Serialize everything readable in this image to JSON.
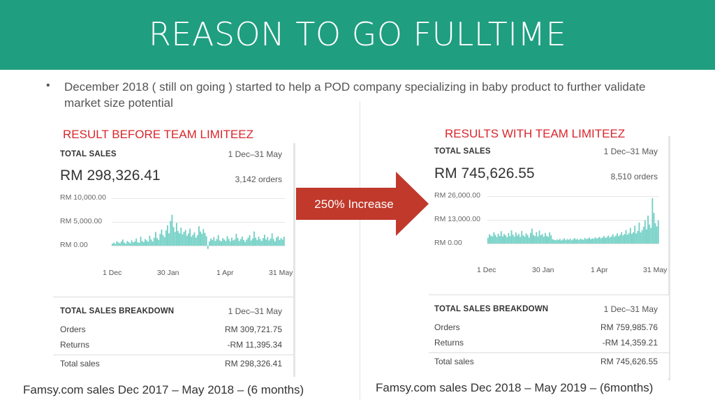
{
  "title": "REASON TO GO FULLTIME",
  "bullet": {
    "marker": "•",
    "text": "December 2018 ( still on going ) started to help a POD company specializing in baby product to further validate market size potential"
  },
  "left": {
    "label": "RESULT BEFORE TEAM LIMITEEZ",
    "total_sales": {
      "title": "TOTAL SALES",
      "date_range": "1 Dec–31 May",
      "amount": "RM 298,326.41",
      "orders": "3,142 orders"
    },
    "breakdown": {
      "title": "TOTAL SALES BREAKDOWN",
      "date_range": "1 Dec–31 May",
      "rows": [
        {
          "label": "Orders",
          "value": "RM 309,721.75"
        },
        {
          "label": "Returns",
          "value": "-RM 11,395.34"
        },
        {
          "label": "Total sales",
          "value": "RM 298,326.41"
        }
      ]
    },
    "caption": "Famsy.com sales Dec 2017 – May 2018 – (6 months)"
  },
  "right": {
    "label": "RESULTS WITH TEAM LIMITEEZ",
    "total_sales": {
      "title": "TOTAL SALES",
      "date_range": "1 Dec–31 May",
      "amount": "RM 745,626.55",
      "orders": "8,510 orders"
    },
    "breakdown": {
      "title": "TOTAL SALES BREAKDOWN",
      "date_range": "1 Dec–31 May",
      "rows": [
        {
          "label": "Orders",
          "value": "RM 759,985.76"
        },
        {
          "label": "Returns",
          "value": "-RM 14,359.21"
        },
        {
          "label": "Total sales",
          "value": "RM 745,626.55"
        }
      ]
    },
    "caption": "Famsy.com sales Dec 2018 – May 2019 – (6months)"
  },
  "arrow": {
    "label": "250% Increase",
    "color": "#c0392b"
  },
  "colors": {
    "header": "#1f9e80",
    "accent_red": "#d9262c",
    "series": "#6fcfc4"
  },
  "chart_data": [
    {
      "type": "bar",
      "ytick_labels": [
        "RM 10,000.00",
        "RM 5,000.00",
        "RM 0.00"
      ],
      "yticks": [
        10000,
        5000,
        0
      ],
      "ylim": [
        0,
        10000
      ],
      "xtick_labels": [
        "1 Dec",
        "30 Jan",
        "1 Apr",
        "31 May"
      ],
      "values": [
        420,
        610,
        380,
        900,
        700,
        520,
        880,
        1300,
        650,
        430,
        980,
        760,
        540,
        1120,
        690,
        880,
        1500,
        720,
        610,
        1900,
        980,
        760,
        1400,
        1100,
        840,
        2100,
        1300,
        900,
        1700,
        2900,
        1600,
        1200,
        2500,
        3400,
        2200,
        1800,
        3200,
        4300,
        2600,
        5200,
        6500,
        3900,
        2900,
        4800,
        3100,
        2600,
        3800,
        2400,
        2900,
        3300,
        2100,
        2600,
        3600,
        1900,
        2300,
        2800,
        1700,
        2200,
        4100,
        3000,
        2500,
        3500,
        2700,
        2000,
        -700,
        900,
        1500,
        1200,
        1800,
        1000,
        1400,
        2200,
        1100,
        900,
        1600,
        1300,
        1000,
        2000,
        1400,
        900,
        1700,
        1100,
        1300,
        2500,
        1600,
        1000,
        1400,
        1900,
        1200,
        800,
        1300,
        1700,
        2200,
        1100,
        1500,
        3000,
        1700,
        1200,
        1900,
        1400,
        1000,
        1600,
        2300,
        1300,
        1800,
        1100,
        1500,
        2600,
        1400,
        900,
        1700,
        2000,
        1200,
        1600,
        1300,
        1900
      ]
    },
    {
      "type": "bar",
      "ytick_labels": [
        "RM 26,000.00",
        "RM 13,000.00",
        "RM 0.00"
      ],
      "yticks": [
        26000,
        13000,
        0
      ],
      "ylim": [
        0,
        26000
      ],
      "xtick_labels": [
        "1 Dec",
        "30 Jan",
        "1 Apr",
        "31 May"
      ],
      "values": [
        3200,
        5100,
        4300,
        3900,
        6200,
        4800,
        3600,
        5400,
        4200,
        6800,
        3900,
        5200,
        4600,
        3500,
        5800,
        4100,
        7200,
        4900,
        3800,
        6100,
        4400,
        5300,
        3700,
        6900,
        4500,
        3900,
        5600,
        4700,
        3300,
        5900,
        8200,
        4800,
        4100,
        6300,
        3900,
        7100,
        4600,
        5200,
        3800,
        5800,
        4200,
        3700,
        6100,
        4500,
        2400,
        2100,
        1800,
        2300,
        1900,
        2600,
        1700,
        2200,
        2900,
        1900,
        2500,
        2100,
        2700,
        1800,
        2400,
        3000,
        2200,
        2600,
        1900,
        2800,
        2300,
        2100,
        3100,
        2500,
        2700,
        3300,
        2400,
        2900,
        2600,
        3400,
        2800,
        3100,
        3700,
        2900,
        3300,
        4200,
        3100,
        3600,
        4400,
        3300,
        3900,
        5100,
        3700,
        4300,
        5600,
        4100,
        4800,
        6300,
        4500,
        5200,
        7400,
        4900,
        5800,
        8600,
        5300,
        6200,
        9800,
        5600,
        6900,
        11500,
        6100,
        7400,
        9200,
        12800,
        7800,
        15300,
        10400,
        8600,
        24900,
        16800,
        11200,
        9400,
        12600
      ]
    }
  ]
}
